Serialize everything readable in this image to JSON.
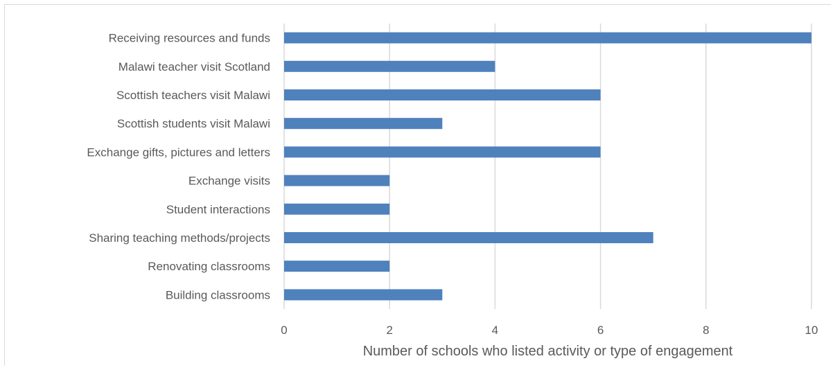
{
  "chart_data": {
    "type": "bar",
    "orientation": "horizontal",
    "categories": [
      "Receiving resources and funds",
      "Malawi teacher visit Scotland",
      "Scottish teachers visit Malawi",
      "Scottish students visit Malawi",
      "Exchange gifts, pictures and letters",
      "Exchange visits",
      "Student interactions",
      "Sharing teaching methods/projects",
      "Renovating classrooms",
      "Building classrooms"
    ],
    "values": [
      10,
      4,
      6,
      3,
      6,
      2,
      2,
      7,
      2,
      3
    ],
    "xlabel": "Number of schools who listed  activity or type of engagement",
    "ylabel": "",
    "title": "",
    "xlim": [
      0,
      10
    ],
    "xticks": [
      0,
      2,
      4,
      6,
      8,
      10
    ],
    "grid": "vertical",
    "legend": "none",
    "bar_color": "#4f81bd",
    "grid_color": "#d9d9d9"
  }
}
